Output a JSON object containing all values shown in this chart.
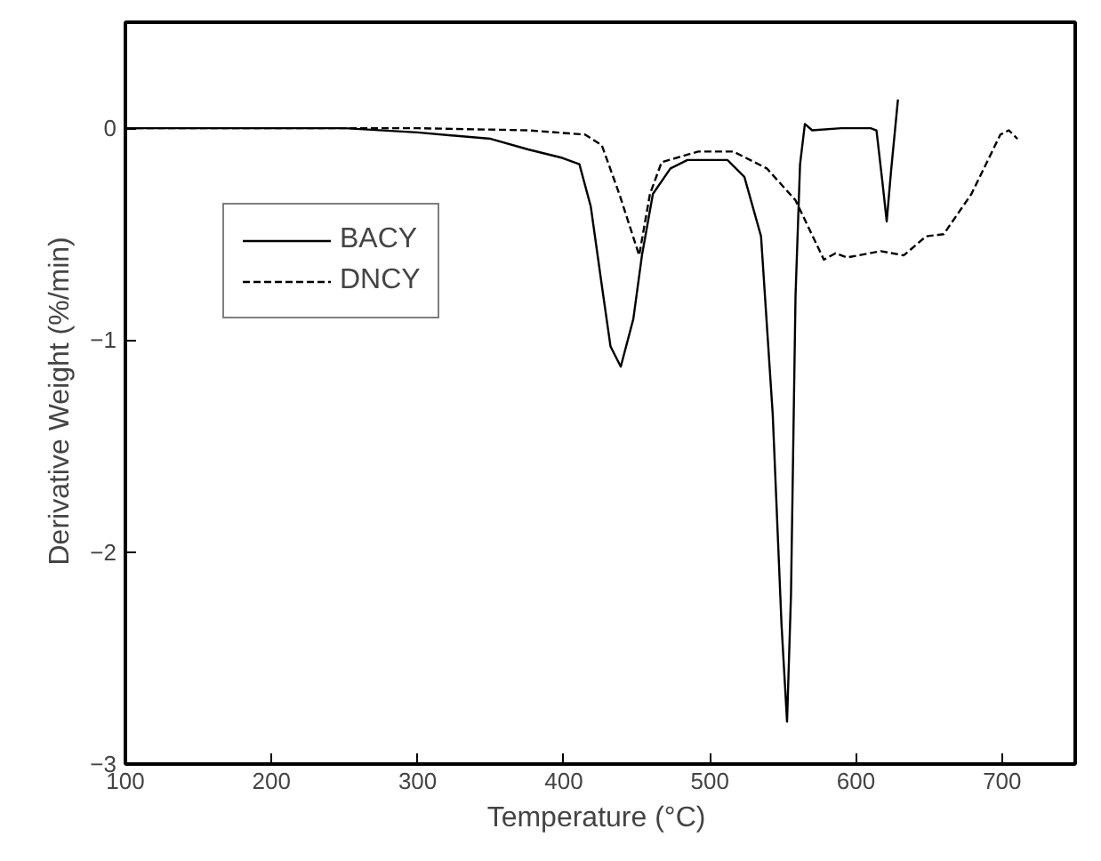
{
  "chart_data": {
    "type": "line",
    "xlabel": "Temperature  (°C)",
    "ylabel": "Derivative  Weight  (%/min)",
    "xlim": [
      100,
      750
    ],
    "ylim": [
      -3,
      0.5
    ],
    "xticks": [
      100,
      200,
      300,
      400,
      500,
      600,
      700
    ],
    "yticks": [
      -3,
      -2,
      -1,
      0
    ],
    "legend": "left",
    "grid": false,
    "series": [
      {
        "name": "BACY",
        "color": "#000000",
        "line_style": "solid",
        "x": [
          100,
          150,
          200,
          250,
          300,
          350,
          375.6,
          399,
          410.7,
          418.5,
          426,
          432,
          439,
          447.6,
          453.5,
          461,
          473,
          484.6,
          500,
          512,
          523.6,
          535,
          543,
          549,
          552.8,
          555.5,
          558.6,
          561.7,
          565,
          570,
          590,
          610,
          614,
          618,
          621,
          624,
          628.7
        ],
        "values": [
          0,
          0,
          0,
          0,
          -0.02,
          -0.05,
          -0.1,
          -0.14,
          -0.17,
          -0.37,
          -0.74,
          -1.03,
          -1.125,
          -0.9,
          -0.6,
          -0.31,
          -0.19,
          -0.15,
          -0.15,
          -0.15,
          -0.23,
          -0.51,
          -1.35,
          -2.34,
          -2.8,
          -2.2,
          -0.79,
          -0.17,
          0.02,
          -0.01,
          0,
          0,
          -0.01,
          -0.25,
          -0.44,
          -0.2,
          0.135
        ]
      },
      {
        "name": "DNCY",
        "color": "#000000",
        "line_style": "dashed",
        "x": [
          100,
          200,
          300,
          375.6,
          414.5,
          426,
          438,
          451.6,
          459,
          467,
          492,
          516,
          539,
          558.6,
          578,
          586,
          593.7,
          617,
          632.6,
          648,
          660,
          679,
          698.8,
          704.6,
          710.5
        ],
        "values": [
          0,
          0,
          0,
          -0.01,
          -0.03,
          -0.08,
          -0.31,
          -0.6,
          -0.31,
          -0.16,
          -0.11,
          -0.11,
          -0.19,
          -0.34,
          -0.62,
          -0.59,
          -0.61,
          -0.58,
          -0.6,
          -0.51,
          -0.5,
          -0.31,
          -0.03,
          -0.01,
          -0.05
        ]
      }
    ]
  }
}
